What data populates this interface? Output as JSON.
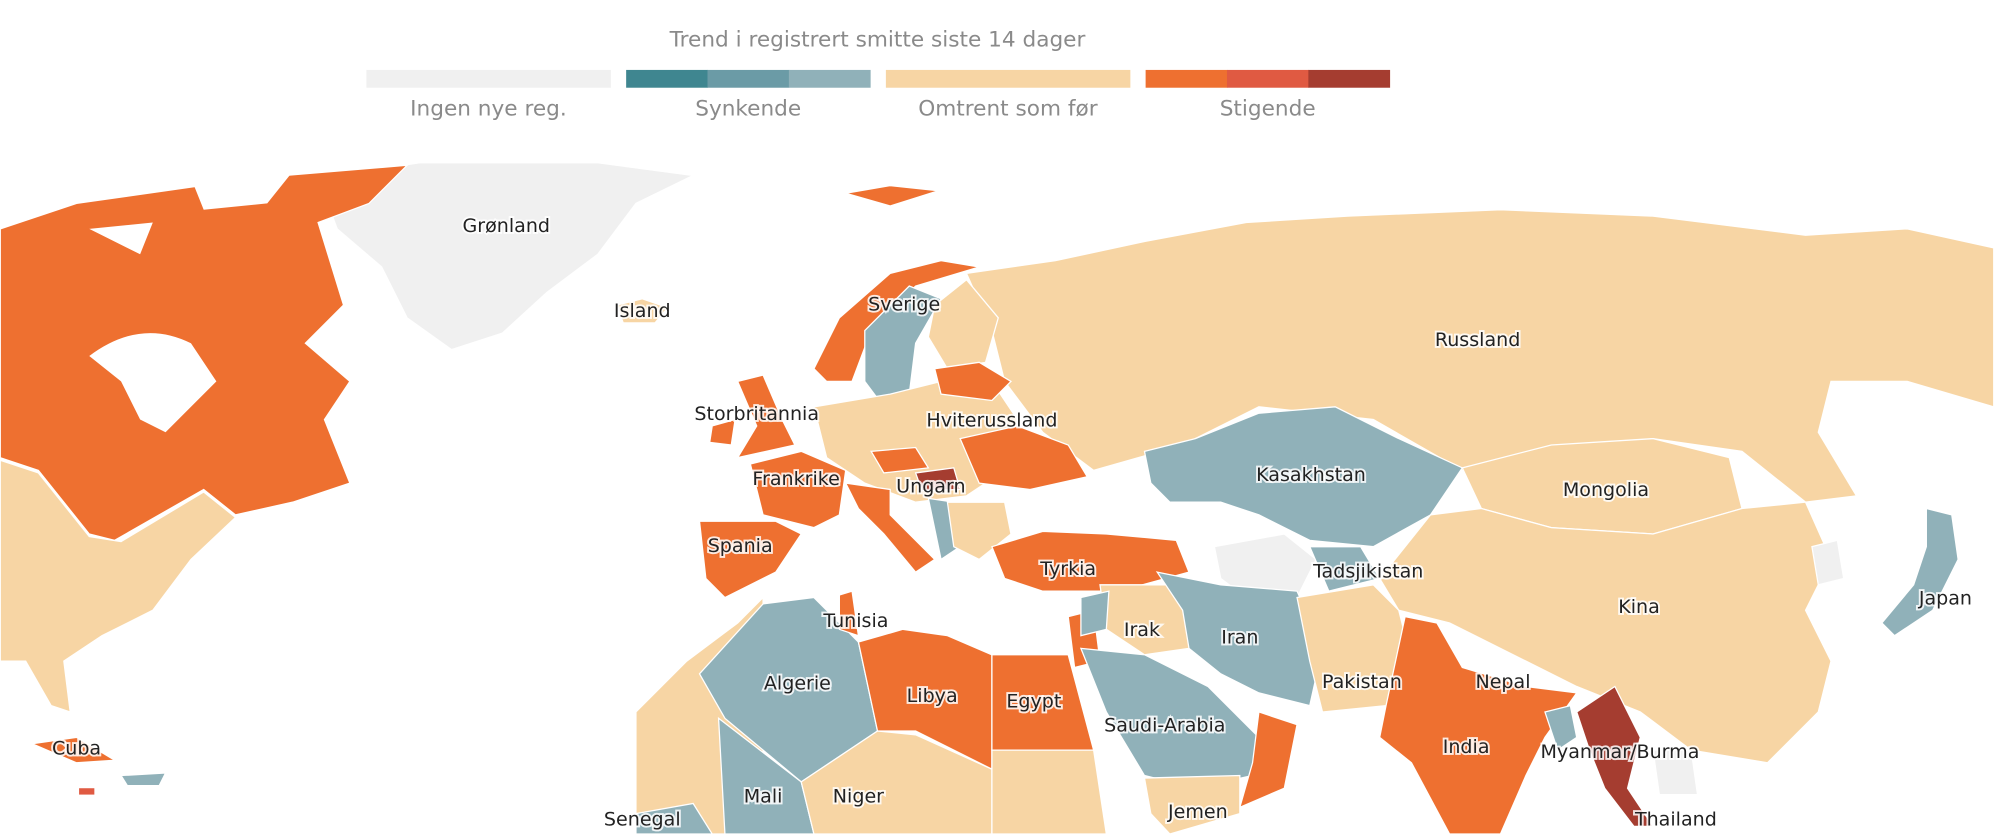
{
  "legend": {
    "title": "Trend i registrert smitte siste 14 dager",
    "items": [
      {
        "label": "Ingen nye reg.",
        "colors": [
          "#f0f0f0"
        ]
      },
      {
        "label": "Synkende",
        "colors": [
          "#3f8690",
          "#6b9ba6",
          "#90b1b9"
        ]
      },
      {
        "label": "Omtrent som før",
        "colors": [
          "#f7d5a4"
        ]
      },
      {
        "label": "Stigende",
        "colors": [
          "#ee7030",
          "#e05a42",
          "#a53d30"
        ]
      }
    ]
  },
  "countries": [
    {
      "label": "Grønland"
    },
    {
      "label": "Island"
    },
    {
      "label": "Sverige"
    },
    {
      "label": "Russland"
    },
    {
      "label": "Storbritannia"
    },
    {
      "label": "Hviterussland"
    },
    {
      "label": "Frankrike"
    },
    {
      "label": "Ungarn"
    },
    {
      "label": "Kasakhstan"
    },
    {
      "label": "Mongolia"
    },
    {
      "label": "Spania"
    },
    {
      "label": "Tyrkia"
    },
    {
      "label": "Tadsjikistan"
    },
    {
      "label": "Japan"
    },
    {
      "label": "Tunisia"
    },
    {
      "label": "Irak"
    },
    {
      "label": "Iran"
    },
    {
      "label": "Kina"
    },
    {
      "label": "Algerie"
    },
    {
      "label": "Libya"
    },
    {
      "label": "Egypt"
    },
    {
      "label": "Pakistan"
    },
    {
      "label": "Nepal"
    },
    {
      "label": "Saudi-Arabia"
    },
    {
      "label": "Cuba"
    },
    {
      "label": "India"
    },
    {
      "label": "Myanmar/Burma"
    },
    {
      "label": "Mali"
    },
    {
      "label": "Niger"
    },
    {
      "label": "Senegal"
    },
    {
      "label": "Jemen"
    },
    {
      "label": "Thailand"
    }
  ]
}
